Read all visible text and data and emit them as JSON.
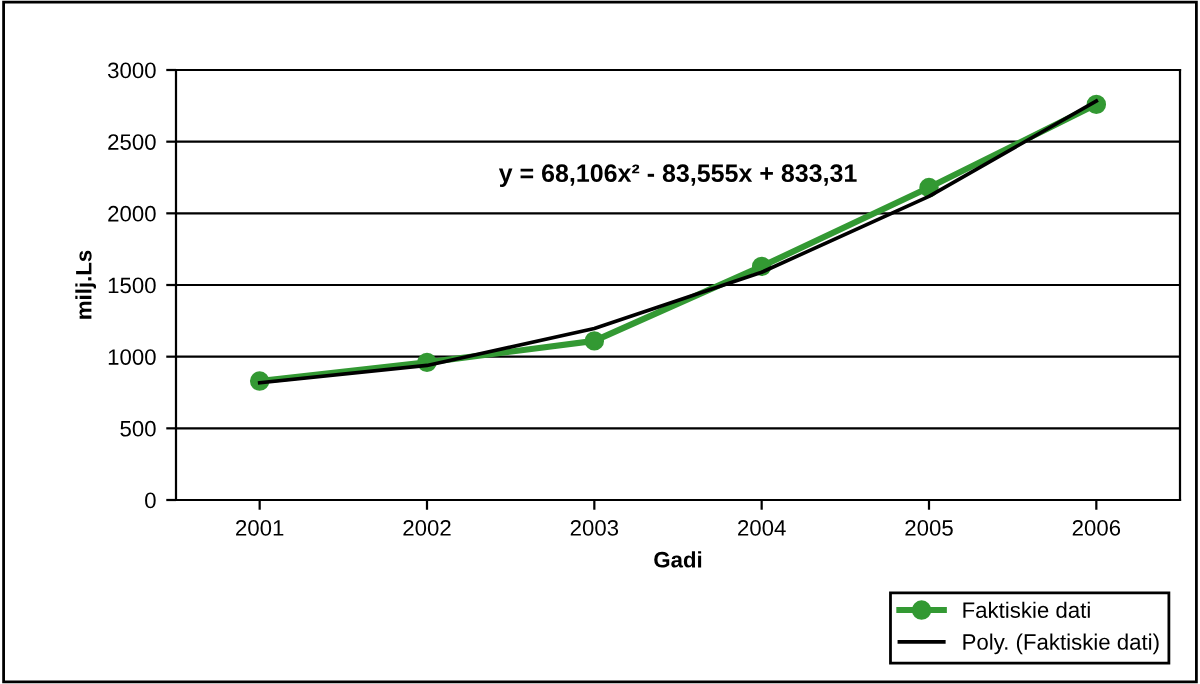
{
  "chart_data": {
    "type": "line",
    "xlabel": "Gadi",
    "ylabel": "milj.Ls",
    "categories": [
      "2001",
      "2002",
      "2003",
      "2004",
      "2005",
      "2006"
    ],
    "series": [
      {
        "name": "Faktiskie dati",
        "color": "#339933",
        "marker": "circle",
        "values": [
          830,
          960,
          1110,
          1630,
          2180,
          2760
        ]
      },
      {
        "name": "Poly. (Faktiskie dati)",
        "color": "#000000",
        "marker": "none",
        "values": [
          818,
          939,
          1196,
          1589,
          2118,
          2784
        ]
      }
    ],
    "ylim": [
      0,
      3000
    ],
    "yticks": [
      0,
      500,
      1000,
      1500,
      2000,
      2500,
      3000
    ],
    "grid": "y",
    "legend": "bottom right",
    "line_style": "solid",
    "annotations": [
      "y = 68,106x² - 83,555x + 833,31"
    ]
  }
}
